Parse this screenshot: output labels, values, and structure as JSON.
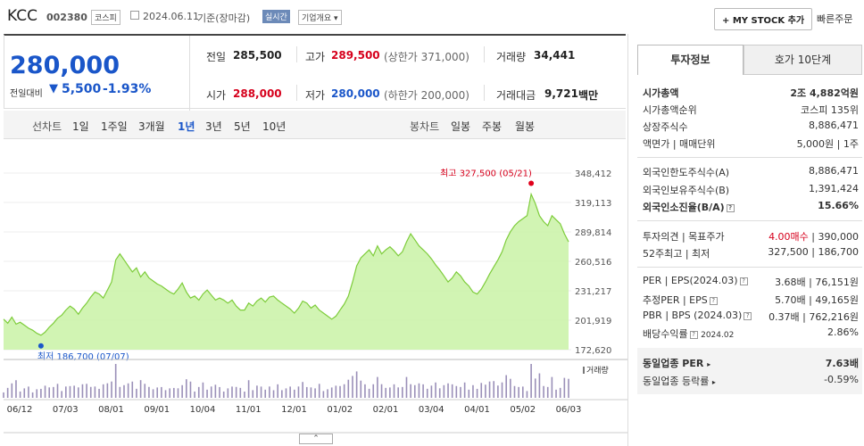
{
  "header": {
    "company": "KCC",
    "code": "002380",
    "market": "코스피",
    "date": "2024.06.11",
    "basis": "기준(장마감)",
    "realtime": "실시간",
    "overview": "기업개요",
    "my_stock": "+ MY STOCK 추가",
    "quick_order": "빠른주문"
  },
  "price": {
    "current": "280,000",
    "change_label": "전일대비",
    "change": "5,500",
    "change_pct": "-1.93%",
    "prev_label": "전일",
    "prev": "285,500",
    "high_label": "고가",
    "high": "289,500",
    "upper_limit": "(상한가 371,000)",
    "volume_label": "거래량",
    "volume": "34,441",
    "open_label": "시가",
    "open": "288,000",
    "low_label": "저가",
    "low": "280,000",
    "lower_limit": "(하한가 200,000)",
    "amount_label": "거래대금",
    "amount": "9,721",
    "amount_unit": "백만"
  },
  "nav": {
    "line_chart": "선차트",
    "periods": [
      "1일",
      "1주일",
      "3개월",
      "1년",
      "3년",
      "5년",
      "10년"
    ],
    "active_period": "1년",
    "candle_chart": "봉차트",
    "candle_periods": [
      "일봉",
      "주봉",
      "월봉"
    ]
  },
  "chart_data": {
    "type": "area",
    "x_ticks": [
      "06/12",
      "07/03",
      "08/01",
      "09/01",
      "10/04",
      "11/01",
      "12/01",
      "01/02",
      "02/01",
      "03/04",
      "04/01",
      "05/02",
      "06/03"
    ],
    "y_ticks": [
      348412,
      319113,
      289814,
      260516,
      231217,
      201919,
      172620
    ],
    "ylim": [
      172620,
      348412
    ],
    "values": [
      203000,
      199000,
      205000,
      198000,
      200000,
      197000,
      194000,
      192000,
      189000,
      187000,
      190000,
      195000,
      199000,
      204000,
      207000,
      212000,
      216000,
      213000,
      208000,
      214000,
      219000,
      225000,
      230000,
      228000,
      224000,
      232000,
      240000,
      262000,
      268000,
      262000,
      256000,
      250000,
      254000,
      245000,
      250000,
      244000,
      241000,
      238000,
      236000,
      233000,
      230000,
      228000,
      233000,
      239000,
      230000,
      224000,
      226000,
      222000,
      228000,
      232000,
      227000,
      222000,
      224000,
      222000,
      219000,
      222000,
      216000,
      212000,
      212000,
      219000,
      216000,
      221000,
      224000,
      220000,
      225000,
      226000,
      222000,
      219000,
      216000,
      213000,
      209000,
      214000,
      221000,
      219000,
      214000,
      217000,
      212000,
      209000,
      206000,
      203000,
      206000,
      212000,
      218000,
      226000,
      240000,
      256000,
      264000,
      268000,
      272000,
      266000,
      276000,
      268000,
      272000,
      275000,
      271000,
      266000,
      270000,
      280000,
      288000,
      282000,
      276000,
      272000,
      268000,
      263000,
      257000,
      252000,
      246000,
      240000,
      244000,
      250000,
      246000,
      240000,
      236000,
      230000,
      228000,
      233000,
      240000,
      248000,
      255000,
      262000,
      270000,
      282000,
      290000,
      296000,
      300000,
      303000,
      306000,
      327500,
      318000,
      306000,
      300000,
      296000,
      306000,
      302000,
      298000,
      288000,
      280000
    ],
    "max_label": "최고 327,500 (05/21)",
    "min_label": "최저 186,700 (07/07)",
    "volume_label": "거래량"
  },
  "tabs": [
    "투자정보",
    "호가 10단계"
  ],
  "info": {
    "market_cap_label": "시가총액",
    "market_cap": "2조 4,882억원",
    "rank_label": "시가총액순위",
    "rank": "코스피 135위",
    "shares_label": "상장주식수",
    "shares": "8,886,471",
    "par_label": "액면가 | 매매단위",
    "par": "5,000원 | 1주",
    "foreign_limit_label": "외국인한도주식수(A)",
    "foreign_limit": "8,886,471",
    "foreign_hold_label": "외국인보유주식수(B)",
    "foreign_hold": "1,391,424",
    "foreign_ratio_label": "외국인소진율(B/A)",
    "foreign_ratio": "15.66%",
    "opinion_label": "투자의견 | 목표주가",
    "opinion": "4.00매수",
    "target": "390,000",
    "week52_label": "52주최고 | 최저",
    "week52_high": "327,500",
    "week52_low": "186,700",
    "per_label": "PER | EPS(2024.03)",
    "per": "3.68배",
    "eps": "76,151원",
    "est_per_label": "추정PER | EPS",
    "est_per": "5.70배",
    "est_eps": "49,165원",
    "pbr_label": "PBR | BPS (2024.03)",
    "pbr": "0.37배",
    "bps": "762,216원",
    "div_label": "배당수익률",
    "div_date": "2024.02",
    "div": "2.86%",
    "sector_per_label": "동일업종 PER",
    "sector_per": "7.63배",
    "sector_change_label": "동일업종 등락률",
    "sector_change": "-0.59%"
  }
}
